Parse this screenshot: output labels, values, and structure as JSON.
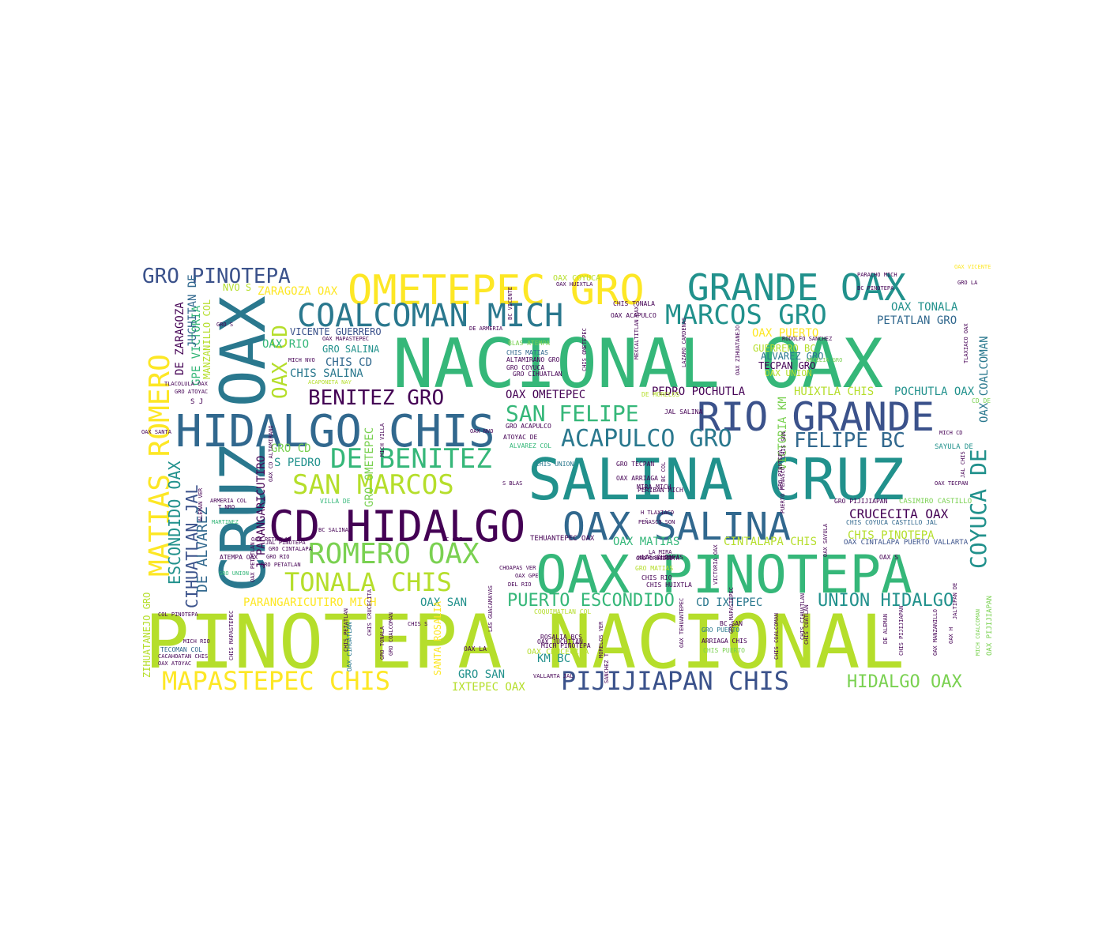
{
  "palette": [
    "#440154",
    "#3b528b",
    "#21918c",
    "#5ec962",
    "#fde725",
    "#31688e",
    "#35b779",
    "#b5de2b",
    "#2a788e",
    "#7ad151"
  ],
  "words": [
    {
      "text": "PINOTEPA NACIONAL",
      "color": "#b5de2b"
    },
    {
      "text": "NACIONAL OAX",
      "color": "#35b779"
    },
    {
      "text": "SALINA CRUZ",
      "color": "#21918c"
    },
    {
      "text": "OAX PINOTEPA",
      "color": "#35b779"
    },
    {
      "text": "CRUZ OAX",
      "color": "#2a788e"
    },
    {
      "text": "CD HIDALGO",
      "color": "#440154"
    },
    {
      "text": "HIDALGO CHIS",
      "color": "#31688e"
    },
    {
      "text": "RIO GRANDE",
      "color": "#3b528b"
    },
    {
      "text": "OMETEPEC GRO",
      "color": "#fde725"
    },
    {
      "text": "GRANDE OAX",
      "color": "#21918c"
    },
    {
      "text": "OAX SALINA",
      "color": "#31688e"
    },
    {
      "text": "COALCOMAN MICH",
      "color": "#2a788e"
    },
    {
      "text": "MATIAS ROMERO",
      "color": "#fde725"
    },
    {
      "text": "ROMERO OAX",
      "color": "#7ad151"
    },
    {
      "text": "DE BENITEZ",
      "color": "#35b779"
    },
    {
      "text": "SAN MARCOS",
      "color": "#b5de2b"
    },
    {
      "text": "MARCOS GRO",
      "color": "#21918c"
    },
    {
      "text": "TONALA CHIS",
      "color": "#b5de2b"
    },
    {
      "text": "PIJIJIAPAN CHIS",
      "color": "#3b528b"
    },
    {
      "text": "MAPASTEPEC CHIS",
      "color": "#fde725"
    },
    {
      "text": "ACAPULCO GRO",
      "color": "#2a788e"
    },
    {
      "text": "SAN FELIPE",
      "color": "#35b779"
    },
    {
      "text": "BENITEZ GRO",
      "color": "#440154"
    },
    {
      "text": "GRO PINOTEPA",
      "color": "#3b528b"
    },
    {
      "text": "FELIPE BC",
      "color": "#31688e"
    },
    {
      "text": "COYUCA DE",
      "color": "#21918c"
    },
    {
      "text": "OAX CD",
      "color": "#b5de2b"
    },
    {
      "text": "PUERTO ESCONDIDO",
      "color": "#35b779"
    },
    {
      "text": "UNION HIDALGO",
      "color": "#21918c"
    },
    {
      "text": "HIDALGO OAX",
      "color": "#7ad151"
    },
    {
      "text": "ESCONDIDO OAX",
      "color": "#21918c"
    },
    {
      "text": "CIHUATLAN JAL",
      "color": "#3b528b"
    },
    {
      "text": "DE ALVAREZ",
      "color": "#31688e"
    },
    {
      "text": "CRUCECITA OAX",
      "color": "#440154"
    },
    {
      "text": "CHIS PINOTEPA",
      "color": "#b5de2b"
    },
    {
      "text": "CINTALAPA CHIS",
      "color": "#b5de2b"
    },
    {
      "text": "OAX MATIAS",
      "color": "#35b779"
    },
    {
      "text": "PARANGARICUTIRO MICH",
      "color": "#fde725"
    },
    {
      "text": "OAX SAN",
      "color": "#21918c"
    },
    {
      "text": "CD IXTEPEC",
      "color": "#2a788e"
    },
    {
      "text": "OAX COALCOMAN",
      "color": "#2a788e"
    },
    {
      "text": "PEDRO POCHUTLA",
      "color": "#440154"
    },
    {
      "text": "POCHUTLA OAX",
      "color": "#21918c"
    },
    {
      "text": "HUIXTLA CHIS",
      "color": "#b5de2b"
    },
    {
      "text": "OAX OMETEPEC",
      "color": "#440154"
    },
    {
      "text": "TECPAN GRO",
      "color": "#440154"
    },
    {
      "text": "ALVAREZ GRO",
      "color": "#2a788e"
    },
    {
      "text": "GUERRERO BC",
      "color": "#b5de2b"
    },
    {
      "text": "OAX PUERTO",
      "color": "#fde725"
    },
    {
      "text": "OAX TONALA",
      "color": "#21918c"
    },
    {
      "text": "PETATLAN GRO",
      "color": "#31688e"
    },
    {
      "text": "VICTORIA KM",
      "color": "#7ad151"
    },
    {
      "text": "ZARAGOZA OAX",
      "color": "#fde725"
    },
    {
      "text": "VICENTE GUERRERO",
      "color": "#3b528b"
    },
    {
      "text": "CHIS SALINA",
      "color": "#2a788e"
    },
    {
      "text": "CHIS CD",
      "color": "#31688e"
    },
    {
      "text": "OAX RIO",
      "color": "#35b779"
    },
    {
      "text": "GRO SALINA",
      "color": "#21918c"
    },
    {
      "text": "GRO CD",
      "color": "#7ad151"
    },
    {
      "text": "S PEDRO",
      "color": "#21918c"
    },
    {
      "text": "GRO OMETEPEC",
      "color": "#7ad151"
    },
    {
      "text": "IXTEPEC OAX",
      "color": "#b5de2b"
    },
    {
      "text": "GRO SAN",
      "color": "#21918c"
    },
    {
      "text": "KM BC",
      "color": "#21918c"
    },
    {
      "text": "ZIHUATANEJO GRO",
      "color": "#b5de2b"
    },
    {
      "text": "GPE VICTORIA",
      "color": "#35b779"
    },
    {
      "text": "JUCHITAN DE",
      "color": "#31688e"
    },
    {
      "text": "DE ZARAGOZA",
      "color": "#440154"
    },
    {
      "text": "MANZANILLO COL",
      "color": "#b5de2b"
    },
    {
      "text": "J PARANGARICUTIRO",
      "color": "#440154"
    },
    {
      "text": "SANTA ROSALIA",
      "color": "#fde725"
    },
    {
      "text": "NVO S",
      "color": "#b5de2b"
    },
    {
      "text": "OAX COYUCA",
      "color": "#b5de2b"
    },
    {
      "text": "SAYULA DE",
      "color": "#21918c"
    },
    {
      "text": "CASIMIRO CASTILLO",
      "color": "#7ad151"
    },
    {
      "text": "OAX CINTALAPA PUERTO VALLARTA",
      "color": "#3b528b"
    },
    {
      "text": "CHIS COYUCA CASTILLO JAL",
      "color": "#31688e"
    },
    {
      "text": "GRO PIJIJIAPAN",
      "color": "#440154"
    },
    {
      "text": "MIRA MICH",
      "color": "#440154"
    },
    {
      "text": "OAX ARRIAGA",
      "color": "#440154"
    },
    {
      "text": "GRO TECPAN",
      "color": "#440154"
    },
    {
      "text": "CHIS UNION",
      "color": "#2a788e"
    },
    {
      "text": "ALVAREZ COL",
      "color": "#35b779"
    },
    {
      "text": "ATOYAC DE",
      "color": "#440154"
    },
    {
      "text": "GRO ACAPULCO",
      "color": "#440154"
    },
    {
      "text": "PERIBAN MICH",
      "color": "#440154"
    },
    {
      "text": "JAL SALINA",
      "color": "#440154"
    },
    {
      "text": "DE MORELOS",
      "color": "#b5de2b"
    },
    {
      "text": "OAX ACAPULCO",
      "color": "#440154"
    },
    {
      "text": "CHIS TONALA",
      "color": "#440154"
    },
    {
      "text": "BLAS ATEMPA",
      "color": "#7ad151"
    },
    {
      "text": "CHIS MATIAS",
      "color": "#31688e"
    },
    {
      "text": "ALTAMIRANO GRO",
      "color": "#440154"
    },
    {
      "text": "GRO COYUCA",
      "color": "#440154"
    },
    {
      "text": "GRO CIHUATLAN",
      "color": "#440154"
    },
    {
      "text": "VILLA DE",
      "color": "#35b779"
    },
    {
      "text": "CHIS S",
      "color": "#440154"
    },
    {
      "text": "OAX LA",
      "color": "#440154"
    },
    {
      "text": "OAX CIHUATLAN",
      "color": "#2a788e"
    },
    {
      "text": "OAX JUCHITAN",
      "color": "#440154"
    },
    {
      "text": "ROSALIA BCS",
      "color": "#440154"
    },
    {
      "text": "MICH PINOTEPA",
      "color": "#440154"
    },
    {
      "text": "OAX CRUCECITA",
      "color": "#b5de2b"
    },
    {
      "text": "COQUIMATLAN COL",
      "color": "#b5de2b"
    },
    {
      "text": "BC SAN",
      "color": "#440154"
    },
    {
      "text": "GRO PUERTO",
      "color": "#2a788e"
    },
    {
      "text": "ARRIAGA CHIS",
      "color": "#440154"
    },
    {
      "text": "CHIS PUERTO",
      "color": "#7ad151"
    },
    {
      "text": "OAX S",
      "color": "#440154"
    },
    {
      "text": "OAX PIJIJIAPAN",
      "color": "#7ad151"
    },
    {
      "text": "CD DE",
      "color": "#7ad151"
    },
    {
      "text": "OAX TECPAN",
      "color": "#440154"
    },
    {
      "text": "ARCELIA GRO",
      "color": "#7ad151"
    },
    {
      "text": "OAX UNION",
      "color": "#b5de2b"
    },
    {
      "text": "TEHUANTEPEC OAX",
      "color": "#440154"
    },
    {
      "text": "CHIS RIO",
      "color": "#440154"
    },
    {
      "text": "GRO MATIAS",
      "color": "#b5de2b"
    },
    {
      "text": "LAS CHOAPAS",
      "color": "#440154"
    },
    {
      "text": "CHIS HUIXTLA",
      "color": "#440154"
    },
    {
      "text": "MICH SALINA",
      "color": "#440154"
    },
    {
      "text": "GRO CRUCECITA",
      "color": "#440154"
    },
    {
      "text": "PEÑASCO SON",
      "color": "#440154"
    },
    {
      "text": "H TLAXIACO",
      "color": "#440154"
    },
    {
      "text": "TECOMAN COL",
      "color": "#31688e"
    },
    {
      "text": "CACAHOATAN CHIS",
      "color": "#440154"
    },
    {
      "text": "OAX ATOYAC",
      "color": "#440154"
    },
    {
      "text": "MICH RIO",
      "color": "#440154"
    },
    {
      "text": "OAX PETATLAN",
      "color": "#440154"
    },
    {
      "text": "JAL PINOTEPA",
      "color": "#440154"
    },
    {
      "text": "GRO CINTALAPA",
      "color": "#440154"
    },
    {
      "text": "GRO RIO",
      "color": "#440154"
    },
    {
      "text": "GRO PETATLAN",
      "color": "#440154"
    },
    {
      "text": "ATEMPA OAX",
      "color": "#440154"
    },
    {
      "text": "GRO UNION",
      "color": "#35b779"
    },
    {
      "text": "ARMERIA COL",
      "color": "#440154"
    },
    {
      "text": "T NRO",
      "color": "#440154"
    },
    {
      "text": "ALEMAN VER",
      "color": "#440154"
    },
    {
      "text": "MARTINEZ",
      "color": "#35b779"
    },
    {
      "text": "OAX SANTA",
      "color": "#440154"
    },
    {
      "text": "GRO ATOYAC",
      "color": "#440154"
    },
    {
      "text": "TLACOLULA OAX",
      "color": "#440154"
    },
    {
      "text": "ACAPONETA NAY",
      "color": "#b5de2b"
    },
    {
      "text": "MICH NVO",
      "color": "#440154"
    },
    {
      "text": "GRO S",
      "color": "#440154"
    },
    {
      "text": "OAX MAPASTEPEC",
      "color": "#440154"
    },
    {
      "text": "PARACHO MICH",
      "color": "#440154"
    },
    {
      "text": "OAX VICENTE",
      "color": "#fde725"
    },
    {
      "text": "GRO LA",
      "color": "#440154"
    },
    {
      "text": "BC PINOTEPA",
      "color": "#440154"
    },
    {
      "text": "OAX HUIXTLA",
      "color": "#440154"
    },
    {
      "text": "DE ARMERIA",
      "color": "#440154"
    },
    {
      "text": "BC VICENTE",
      "color": "#440154"
    },
    {
      "text": "RODOLFO SANCHEZ",
      "color": "#440154"
    },
    {
      "text": "BC SALINA",
      "color": "#440154"
    },
    {
      "text": "S BLAS",
      "color": "#440154"
    },
    {
      "text": "BC GPE",
      "color": "#440154"
    },
    {
      "text": "OAX NVO",
      "color": "#440154"
    },
    {
      "text": "MICH CD",
      "color": "#440154"
    },
    {
      "text": "OAX GPE",
      "color": "#440154"
    },
    {
      "text": "DEL RIO",
      "color": "#440154"
    },
    {
      "text": "CHOAPAS VER",
      "color": "#440154"
    },
    {
      "text": "LA MIRA",
      "color": "#440154"
    },
    {
      "text": "S J",
      "color": "#440154"
    },
    {
      "text": "OAX SAYULA",
      "color": "#440154"
    },
    {
      "text": "CHIS MAPASTEPEC",
      "color": "#440154"
    },
    {
      "text": "OAX PETATLAN",
      "color": "#440154"
    },
    {
      "text": "GRO TONALA",
      "color": "#440154"
    },
    {
      "text": "GRO COALCOMAN",
      "color": "#440154"
    },
    {
      "text": "CHIS PETATLAN",
      "color": "#440154"
    },
    {
      "text": "CHIS CRUCECITA",
      "color": "#440154"
    },
    {
      "text": "MICH COALCOMAN",
      "color": "#7ad151"
    },
    {
      "text": "OAX MANZANILLO",
      "color": "#440154"
    },
    {
      "text": "CHIS COALCOMAN",
      "color": "#440154"
    },
    {
      "text": "OAX TEHUANTEPEC",
      "color": "#440154"
    },
    {
      "text": "CHIS PIJIJIAPAN",
      "color": "#440154"
    },
    {
      "text": "DE ALEMAN",
      "color": "#440154"
    },
    {
      "text": "GRO MAPASTEPEC",
      "color": "#440154"
    },
    {
      "text": "VICTORIA OAX",
      "color": "#440154"
    },
    {
      "text": "PUERTO PEÑASCO",
      "color": "#440154"
    },
    {
      "text": "CHIS OMETEPEC",
      "color": "#440154"
    },
    {
      "text": "OAX ZIHUATANEJO",
      "color": "#440154"
    },
    {
      "text": "LAZARO CARDENAS",
      "color": "#440154"
    },
    {
      "text": "MEXCALTITLAN OAX",
      "color": "#440154"
    },
    {
      "text": "BC COL",
      "color": "#440154"
    },
    {
      "text": "CHIS SAN",
      "color": "#440154"
    },
    {
      "text": "JAL CHIS",
      "color": "#440154"
    },
    {
      "text": "TLAXIACO OAX",
      "color": "#440154"
    },
    {
      "text": "SANCHEZ T",
      "color": "#440154"
    },
    {
      "text": "CHIS CUATLAN",
      "color": "#440154"
    },
    {
      "text": "JALTIPAN DE",
      "color": "#440154"
    },
    {
      "text": "MICH VILLA",
      "color": "#440154"
    },
    {
      "text": "OAX CD ALTAMIRANO",
      "color": "#440154"
    },
    {
      "text": "LAS GUACAMAYAS",
      "color": "#440154"
    },
    {
      "text": "MORELOS VER",
      "color": "#440154"
    },
    {
      "text": "CHIS CIHUATLAN",
      "color": "#440154"
    },
    {
      "text": "OAX H",
      "color": "#440154"
    },
    {
      "text": "GRO PINOTEPA",
      "color": "#440154"
    },
    {
      "text": "VALLARTA JAL",
      "color": "#440154"
    },
    {
      "text": "COL PINOTEPA",
      "color": "#440154"
    }
  ]
}
